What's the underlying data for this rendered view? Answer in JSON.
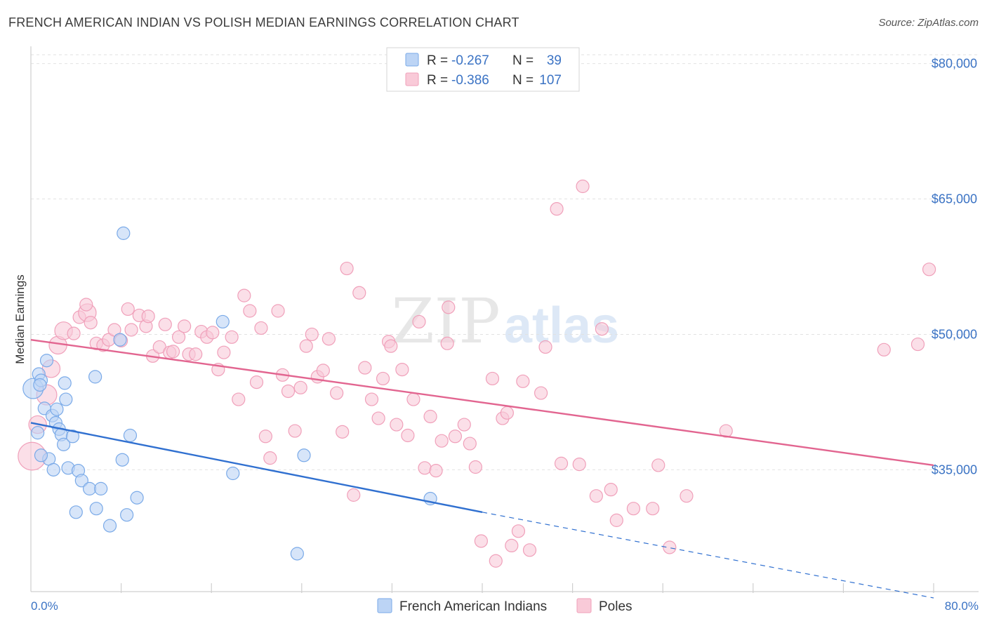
{
  "header": {
    "title": "FRENCH AMERICAN INDIAN VS POLISH MEDIAN EARNINGS CORRELATION CHART",
    "source": "Source: ZipAtlas.com"
  },
  "watermark": {
    "zip": "ZIP",
    "atlas": "atlas"
  },
  "stats": [
    {
      "r_label": "R =",
      "r_value": "-0.267",
      "n_label": "N =",
      "n_value": "39",
      "color": "#7aaae8",
      "fill": "#bcd4f5"
    },
    {
      "r_label": "R =",
      "r_value": "-0.386",
      "n_label": "N =",
      "n_value": "107",
      "color": "#f0a0ba",
      "fill": "#f9cad8"
    }
  ],
  "chart_data": {
    "type": "scatter",
    "title": "FRENCH AMERICAN INDIAN VS POLISH MEDIAN EARNINGS CORRELATION CHART",
    "xlabel": "",
    "ylabel": "Median Earnings",
    "xlim": [
      0,
      80
    ],
    "ylim": [
      21500,
      83000
    ],
    "x_tick_labels": [
      "0.0%",
      "80.0%"
    ],
    "y_ticks": [
      35000,
      50000,
      65000,
      80000
    ],
    "y_tick_labels": [
      "$35,000",
      "$50,000",
      "$65,000",
      "$80,000"
    ],
    "legend": [
      "French American Indians",
      "Poles"
    ],
    "series": [
      {
        "name": "French American Indians",
        "color": "#3070d0",
        "fill": "#bcd4f5",
        "stroke": "#7aaae8",
        "trend": {
          "x0": 0,
          "y0": 40200,
          "x1": 40,
          "y1": 30300,
          "dash_x1": 80,
          "dash_y1": 20800
        },
        "points": [
          [
            0.2,
            44000,
            1.6
          ],
          [
            0.7,
            45600,
            1
          ],
          [
            0.9,
            44900,
            1
          ],
          [
            0.8,
            44400,
            1
          ],
          [
            1.4,
            47100,
            1
          ],
          [
            1.2,
            41800,
            1
          ],
          [
            0.6,
            39100,
            1
          ],
          [
            1.9,
            41000,
            1
          ],
          [
            2.2,
            40200,
            1
          ],
          [
            2.3,
            41700,
            1
          ],
          [
            2.5,
            39500,
            1
          ],
          [
            2.7,
            38900,
            1
          ],
          [
            2.9,
            37800,
            1
          ],
          [
            1.6,
            36200,
            1
          ],
          [
            0.9,
            36600,
            1
          ],
          [
            2.0,
            35000,
            1
          ],
          [
            3.1,
            42800,
            1
          ],
          [
            3.0,
            44600,
            1
          ],
          [
            3.3,
            35200,
            1
          ],
          [
            3.7,
            38700,
            1
          ],
          [
            4.2,
            34900,
            1
          ],
          [
            4.5,
            33800,
            1
          ],
          [
            5.2,
            32900,
            1
          ],
          [
            6.2,
            32900,
            1
          ],
          [
            5.8,
            30700,
            1
          ],
          [
            4.0,
            30300,
            1
          ],
          [
            7.0,
            28800,
            1
          ],
          [
            8.5,
            30000,
            1
          ],
          [
            9.4,
            31900,
            1
          ],
          [
            8.1,
            36100,
            1
          ],
          [
            8.8,
            38800,
            1
          ],
          [
            5.7,
            45300,
            1
          ],
          [
            7.9,
            49400,
            1
          ],
          [
            8.2,
            61200,
            1
          ],
          [
            17.0,
            51400,
            1
          ],
          [
            17.9,
            34600,
            1
          ],
          [
            24.2,
            36600,
            1
          ],
          [
            23.6,
            25700,
            1
          ],
          [
            35.4,
            31800,
            1
          ]
        ]
      },
      {
        "name": "Poles",
        "color": "#e26590",
        "fill": "#f9cad8",
        "stroke": "#f0a0ba",
        "trend": {
          "x0": 0,
          "y0": 49400,
          "x1": 80,
          "y1": 35500
        },
        "points": [
          [
            0.1,
            36500,
            2.2
          ],
          [
            0.6,
            40000,
            1.4
          ],
          [
            1.4,
            43300,
            1.6
          ],
          [
            1.8,
            46200,
            1.4
          ],
          [
            2.4,
            48800,
            1.4
          ],
          [
            2.9,
            50400,
            1.4
          ],
          [
            3.8,
            50100,
            1
          ],
          [
            4.3,
            51900,
            1
          ],
          [
            5.0,
            52400,
            1.4
          ],
          [
            4.9,
            53300,
            1
          ],
          [
            5.3,
            51300,
            1
          ],
          [
            5.8,
            49000,
            1
          ],
          [
            6.4,
            48800,
            1
          ],
          [
            6.9,
            49400,
            1
          ],
          [
            7.4,
            50500,
            1
          ],
          [
            8.0,
            49300,
            1
          ],
          [
            8.6,
            52800,
            1
          ],
          [
            8.9,
            50500,
            1
          ],
          [
            9.6,
            52100,
            1
          ],
          [
            10.2,
            50900,
            1
          ],
          [
            10.4,
            52000,
            1
          ],
          [
            10.8,
            47600,
            1
          ],
          [
            11.4,
            48600,
            1
          ],
          [
            11.9,
            51100,
            1
          ],
          [
            12.3,
            48000,
            1
          ],
          [
            12.6,
            48100,
            1
          ],
          [
            13.1,
            49700,
            1
          ],
          [
            13.6,
            50900,
            1
          ],
          [
            14.0,
            47800,
            1
          ],
          [
            14.6,
            47800,
            1
          ],
          [
            15.1,
            50300,
            1
          ],
          [
            15.6,
            49700,
            1
          ],
          [
            16.1,
            50200,
            1
          ],
          [
            16.6,
            46100,
            1
          ],
          [
            17.1,
            48000,
            1
          ],
          [
            17.8,
            49700,
            1
          ],
          [
            18.4,
            42800,
            1
          ],
          [
            18.9,
            54300,
            1
          ],
          [
            19.4,
            52600,
            1
          ],
          [
            20.0,
            44700,
            1
          ],
          [
            20.4,
            50700,
            1
          ],
          [
            20.8,
            38700,
            1
          ],
          [
            21.2,
            36300,
            1
          ],
          [
            21.9,
            52600,
            1
          ],
          [
            22.3,
            45500,
            1
          ],
          [
            22.8,
            43700,
            1
          ],
          [
            23.4,
            39300,
            1
          ],
          [
            23.9,
            44100,
            1
          ],
          [
            24.4,
            48700,
            1
          ],
          [
            24.9,
            50000,
            1
          ],
          [
            25.4,
            45300,
            1
          ],
          [
            25.9,
            46000,
            1
          ],
          [
            26.4,
            49500,
            1
          ],
          [
            27.1,
            43500,
            1
          ],
          [
            27.6,
            39200,
            1
          ],
          [
            28.0,
            57300,
            1
          ],
          [
            28.6,
            32200,
            1
          ],
          [
            29.1,
            54600,
            1
          ],
          [
            29.6,
            46300,
            1
          ],
          [
            30.2,
            42800,
            1
          ],
          [
            30.8,
            40700,
            1
          ],
          [
            31.2,
            45100,
            1
          ],
          [
            31.7,
            49200,
            1
          ],
          [
            31.9,
            48700,
            1
          ],
          [
            32.4,
            40000,
            1
          ],
          [
            32.9,
            46100,
            1
          ],
          [
            33.4,
            38800,
            1
          ],
          [
            33.9,
            42800,
            1
          ],
          [
            34.4,
            51400,
            1
          ],
          [
            34.9,
            35200,
            1
          ],
          [
            35.4,
            40900,
            1
          ],
          [
            35.9,
            34900,
            1
          ],
          [
            36.4,
            38200,
            1
          ],
          [
            36.9,
            49000,
            1
          ],
          [
            37.0,
            53000,
            1
          ],
          [
            37.6,
            38700,
            1
          ],
          [
            38.4,
            40000,
            1
          ],
          [
            38.9,
            37900,
            1
          ],
          [
            39.4,
            35300,
            1
          ],
          [
            39.9,
            27100,
            1
          ],
          [
            40.9,
            45100,
            1
          ],
          [
            41.2,
            24900,
            1
          ],
          [
            41.8,
            40700,
            1
          ],
          [
            42.2,
            41300,
            1
          ],
          [
            42.6,
            26600,
            1
          ],
          [
            43.2,
            28200,
            1
          ],
          [
            43.6,
            44800,
            1
          ],
          [
            44.2,
            26100,
            1
          ],
          [
            45.2,
            43500,
            1
          ],
          [
            45.6,
            48600,
            1
          ],
          [
            46.6,
            63900,
            1
          ],
          [
            47.0,
            35700,
            1
          ],
          [
            48.6,
            35600,
            1
          ],
          [
            48.9,
            66400,
            1
          ],
          [
            50.1,
            32100,
            1
          ],
          [
            50.6,
            50600,
            1
          ],
          [
            51.4,
            32800,
            1
          ],
          [
            51.9,
            29400,
            1
          ],
          [
            53.4,
            30700,
            1
          ],
          [
            55.1,
            30700,
            1
          ],
          [
            55.6,
            35500,
            1
          ],
          [
            56.6,
            26400,
            1
          ],
          [
            58.1,
            32100,
            1
          ],
          [
            61.6,
            39300,
            1
          ],
          [
            75.6,
            48300,
            1
          ],
          [
            78.6,
            48900,
            1
          ],
          [
            79.6,
            57200,
            1
          ]
        ]
      }
    ]
  }
}
